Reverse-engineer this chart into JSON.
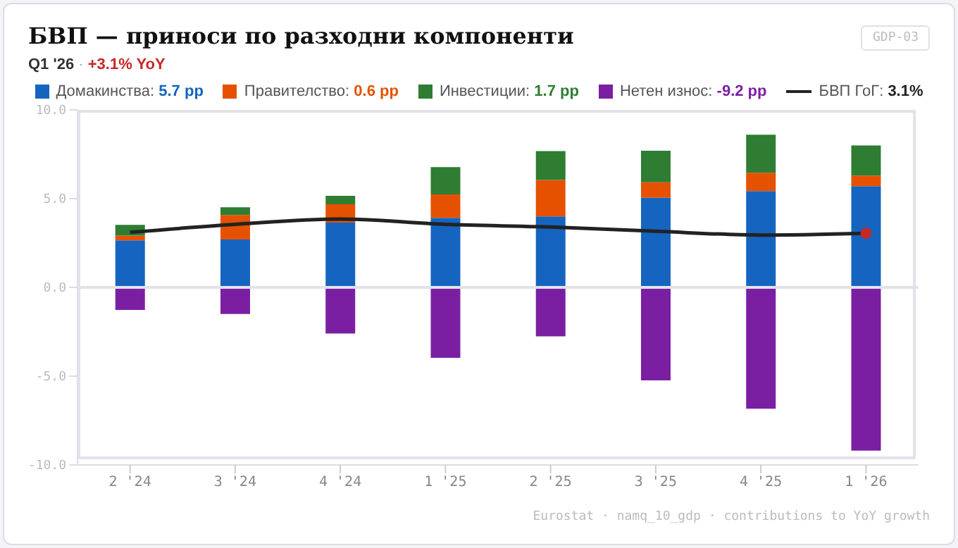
{
  "chart_data": {
    "type": "bar",
    "title": "БВП — приноси по разходни компоненти",
    "subtitle": "Q1 '26 · +3.1% YoY",
    "categories": [
      "2 '24",
      "3 '24",
      "4 '24",
      "1 '25",
      "2 '25",
      "3 '25",
      "4 '25",
      "1 '26"
    ],
    "stacked": true,
    "series": [
      {
        "name": "Домакинства: 5.7 pp",
        "color": "#1565c0",
        "values": [
          2.65,
          2.7,
          3.65,
          3.92,
          4.0,
          5.05,
          5.43,
          5.7
        ]
      },
      {
        "name": "Правителство: 0.6 pp",
        "color": "#e65100",
        "values": [
          0.27,
          1.38,
          1.03,
          1.32,
          2.05,
          0.87,
          1.03,
          0.6
        ]
      },
      {
        "name": "Инвестиции: 1.7 pp",
        "color": "#2e7d32",
        "values": [
          0.6,
          0.43,
          0.48,
          1.54,
          1.63,
          1.78,
          2.14,
          1.7
        ]
      },
      {
        "name": "Нетен износ: -9.2 pp",
        "color": "#7b1fa2",
        "values": [
          -1.27,
          -1.5,
          -2.6,
          -3.97,
          -2.76,
          -5.24,
          -6.84,
          -9.2
        ]
      },
      {
        "name": "БВП ГоГ: 3.1%",
        "type": "line",
        "color": "#222222",
        "values": [
          3.1,
          3.55,
          3.85,
          3.55,
          3.4,
          3.16,
          2.95,
          3.05
        ]
      }
    ],
    "ylim": [
      -10,
      10
    ],
    "yticks": [
      {
        "value": -10,
        "label": "-10.0"
      },
      {
        "value": -5,
        "label": "-5.0"
      },
      {
        "value": 0,
        "label": "0.0"
      },
      {
        "value": 5,
        "label": "5.0"
      },
      {
        "value": 10,
        "label": "10.0"
      }
    ],
    "ref_lines": [
      {
        "axis": "y",
        "value": 0,
        "color": "#e2e2ea"
      }
    ],
    "legend": "top",
    "marker": "none",
    "annotations": [
      "GDP-03",
      "Eurostat · namq_10_gdp · contributions to YoY growth"
    ]
  }
}
